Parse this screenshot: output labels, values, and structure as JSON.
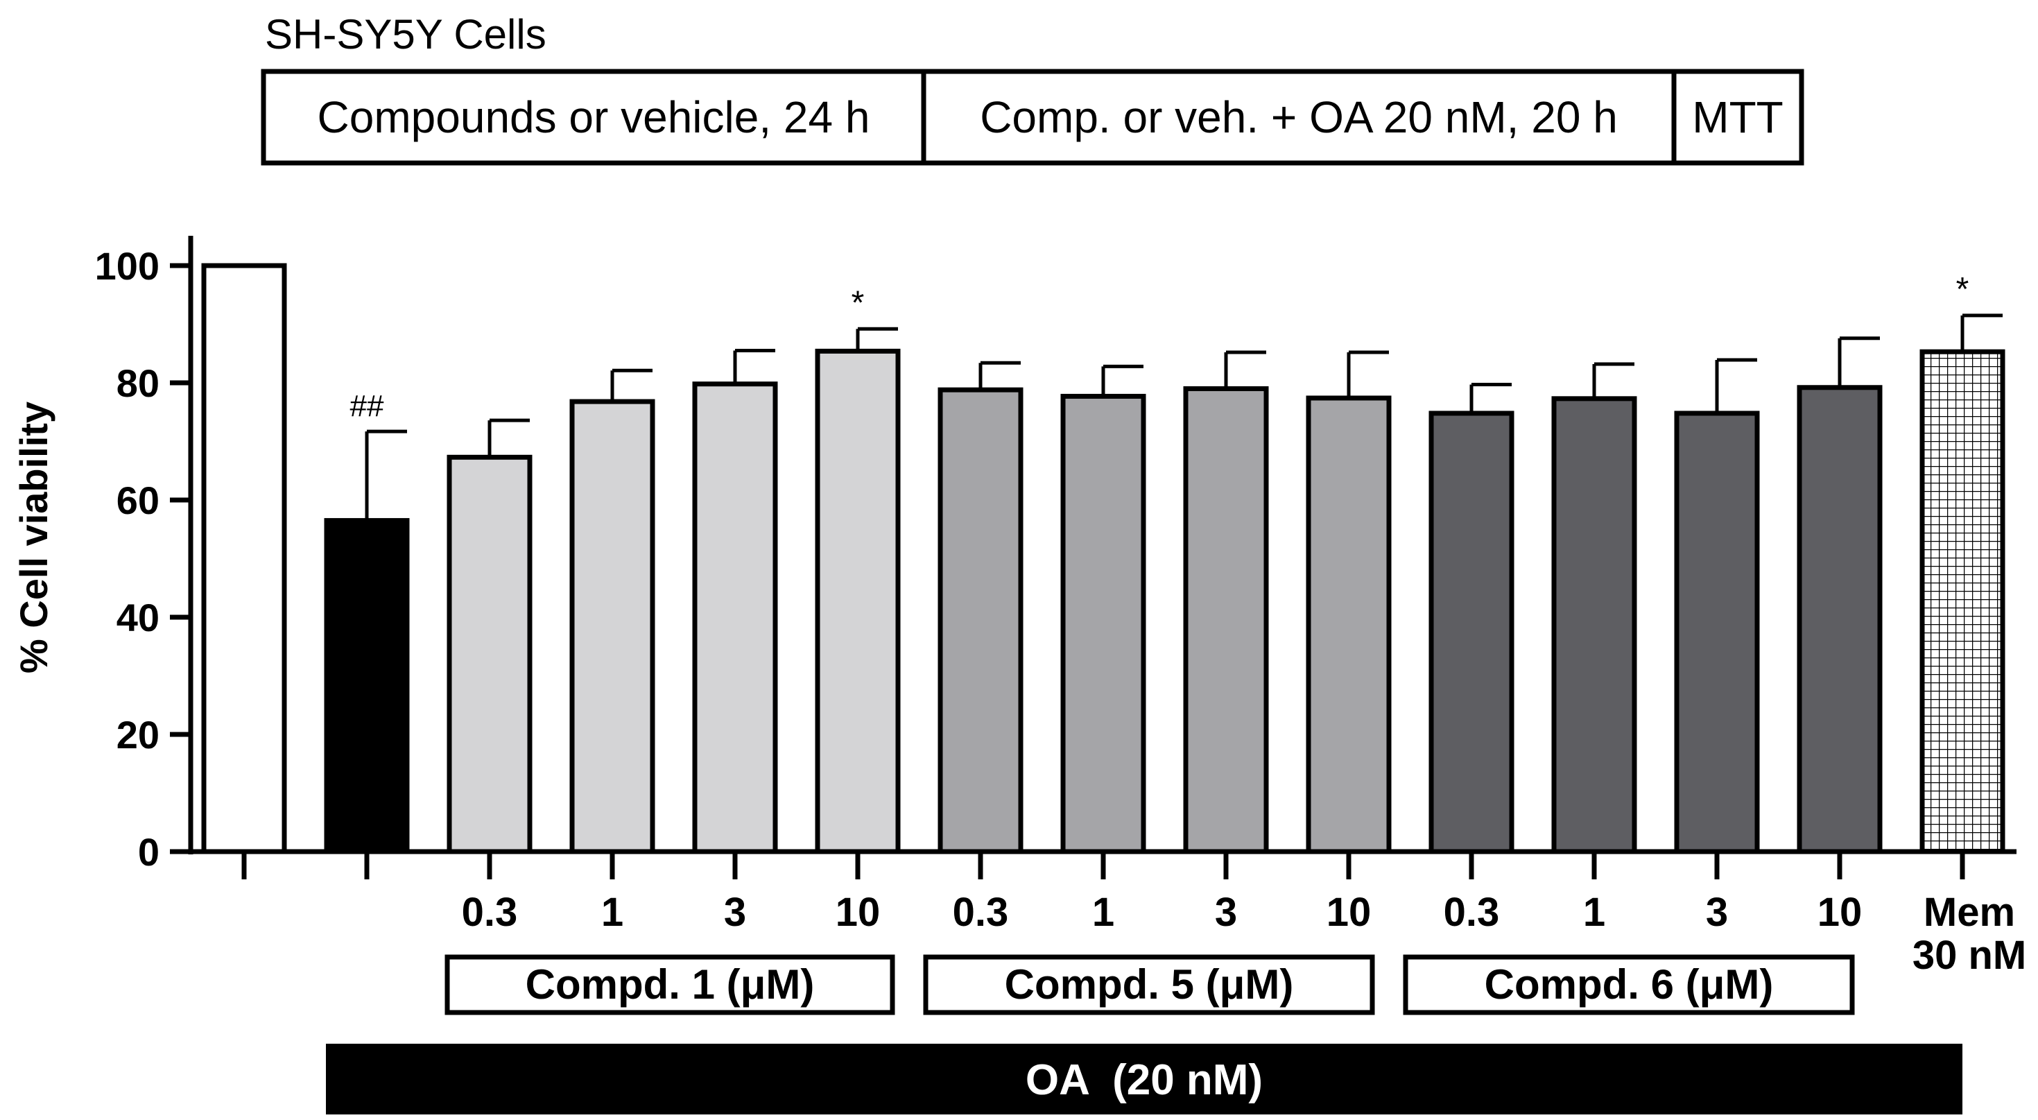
{
  "header": {
    "cell_line": "SH-SY5Y Cells",
    "protocol_steps": [
      "Compounds or vehicle, 24 h",
      "Comp. or veh. + OA 20 nM, 20 h",
      "MTT"
    ]
  },
  "groups": {
    "compd1": "Compd. 1 (μM)",
    "compd5": "Compd. 5 (μM)",
    "compd6": "Compd. 6 (μM)",
    "oa": "OA  (20 nM)"
  },
  "colors": {
    "control": "#ffffff",
    "oa": "#000000",
    "compd1": "#d4d4d6",
    "compd5": "#a5a5a8",
    "compd6": "#5e5e62",
    "memantine_pattern": "crosshatch",
    "axis": "#000000"
  },
  "chart_data": {
    "type": "bar",
    "title": "",
    "xlabel": "",
    "ylabel": "% Cell viability",
    "ylim": [
      0,
      100
    ],
    "yticks": [
      0,
      20,
      40,
      60,
      80,
      100
    ],
    "categories": [
      "",
      "",
      "0.3",
      "1",
      "3",
      "10",
      "0.3",
      "1",
      "3",
      "10",
      "0.3",
      "1",
      "3",
      "10",
      "Mem\n30 nM"
    ],
    "series": [
      {
        "name": "% Cell viability",
        "values": [
          100,
          56.5,
          67.3,
          76.8,
          79.8,
          85.4,
          78.8,
          77.7,
          79.0,
          77.4,
          74.8,
          77.3,
          74.8,
          79.2,
          85.3
        ],
        "errors": [
          0,
          15.2,
          6.3,
          5.3,
          5.7,
          3.8,
          4.6,
          5.1,
          6.2,
          7.8,
          4.9,
          5.9,
          9.1,
          8.4,
          6.2
        ],
        "groups": [
          "control",
          "oa",
          "compd1",
          "compd1",
          "compd1",
          "compd1",
          "compd5",
          "compd5",
          "compd5",
          "compd5",
          "compd6",
          "compd6",
          "compd6",
          "compd6",
          "memantine"
        ],
        "annotations": [
          "",
          "##",
          "",
          "",
          "",
          "*",
          "",
          "",
          "",
          "",
          "",
          "",
          "",
          "",
          "*"
        ]
      }
    ]
  }
}
